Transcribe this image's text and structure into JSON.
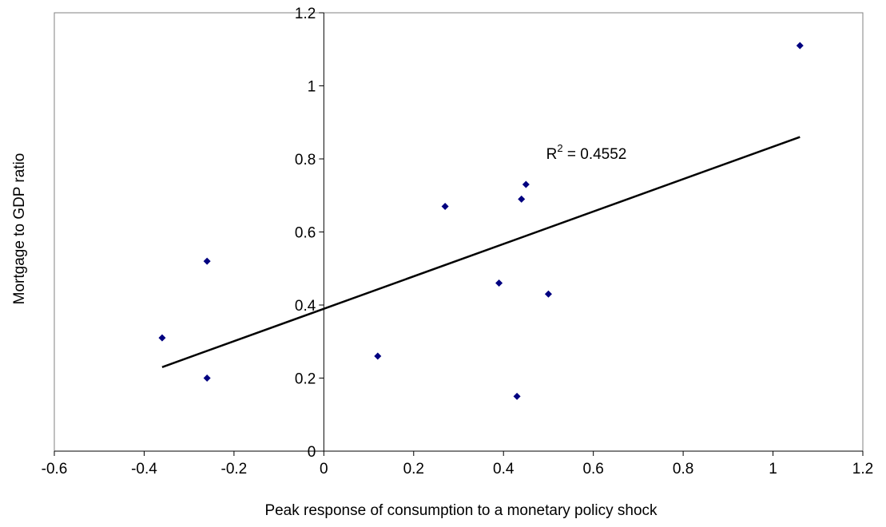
{
  "chart_data": {
    "type": "scatter",
    "title": "",
    "xlabel": "Peak response of consumption to a monetary policy shock",
    "ylabel": "Mortgage to GDP ratio",
    "xlim": [
      -0.6,
      1.2
    ],
    "ylim": [
      0,
      1.2
    ],
    "x_ticks": [
      -0.6,
      -0.4,
      -0.2,
      0,
      0.2,
      0.4,
      0.6,
      0.8,
      1,
      1.2
    ],
    "y_ticks": [
      0,
      0.2,
      0.4,
      0.6,
      0.8,
      1,
      1.2
    ],
    "x_tick_labels": [
      "-0.6",
      "-0.4",
      "-0.2",
      "0",
      "0.2",
      "0.4",
      "0.6",
      "0.8",
      "1",
      "1.2"
    ],
    "y_tick_labels": [
      "0",
      "0.2",
      "0.4",
      "0.6",
      "0.8",
      "1",
      "1.2"
    ],
    "grid": false,
    "legend": "none",
    "points": [
      {
        "x": -0.36,
        "y": 0.31
      },
      {
        "x": -0.26,
        "y": 0.52
      },
      {
        "x": -0.26,
        "y": 0.2
      },
      {
        "x": 0.12,
        "y": 0.26
      },
      {
        "x": 0.27,
        "y": 0.67
      },
      {
        "x": 0.39,
        "y": 0.46
      },
      {
        "x": 0.43,
        "y": 0.15
      },
      {
        "x": 0.44,
        "y": 0.69
      },
      {
        "x": 0.45,
        "y": 0.73
      },
      {
        "x": 0.5,
        "y": 0.43
      },
      {
        "x": 1.06,
        "y": 1.11
      }
    ],
    "trendline": {
      "type": "linear",
      "x_start": -0.36,
      "y_start": 0.23,
      "x_end": 1.06,
      "y_end": 0.86
    },
    "annotation": {
      "text": "R",
      "superscript": "2",
      "value_text": " = 0.4552"
    },
    "colors": {
      "marker": "#000080",
      "line": "#000000",
      "axis": "#000000",
      "frame": "#808080"
    }
  }
}
